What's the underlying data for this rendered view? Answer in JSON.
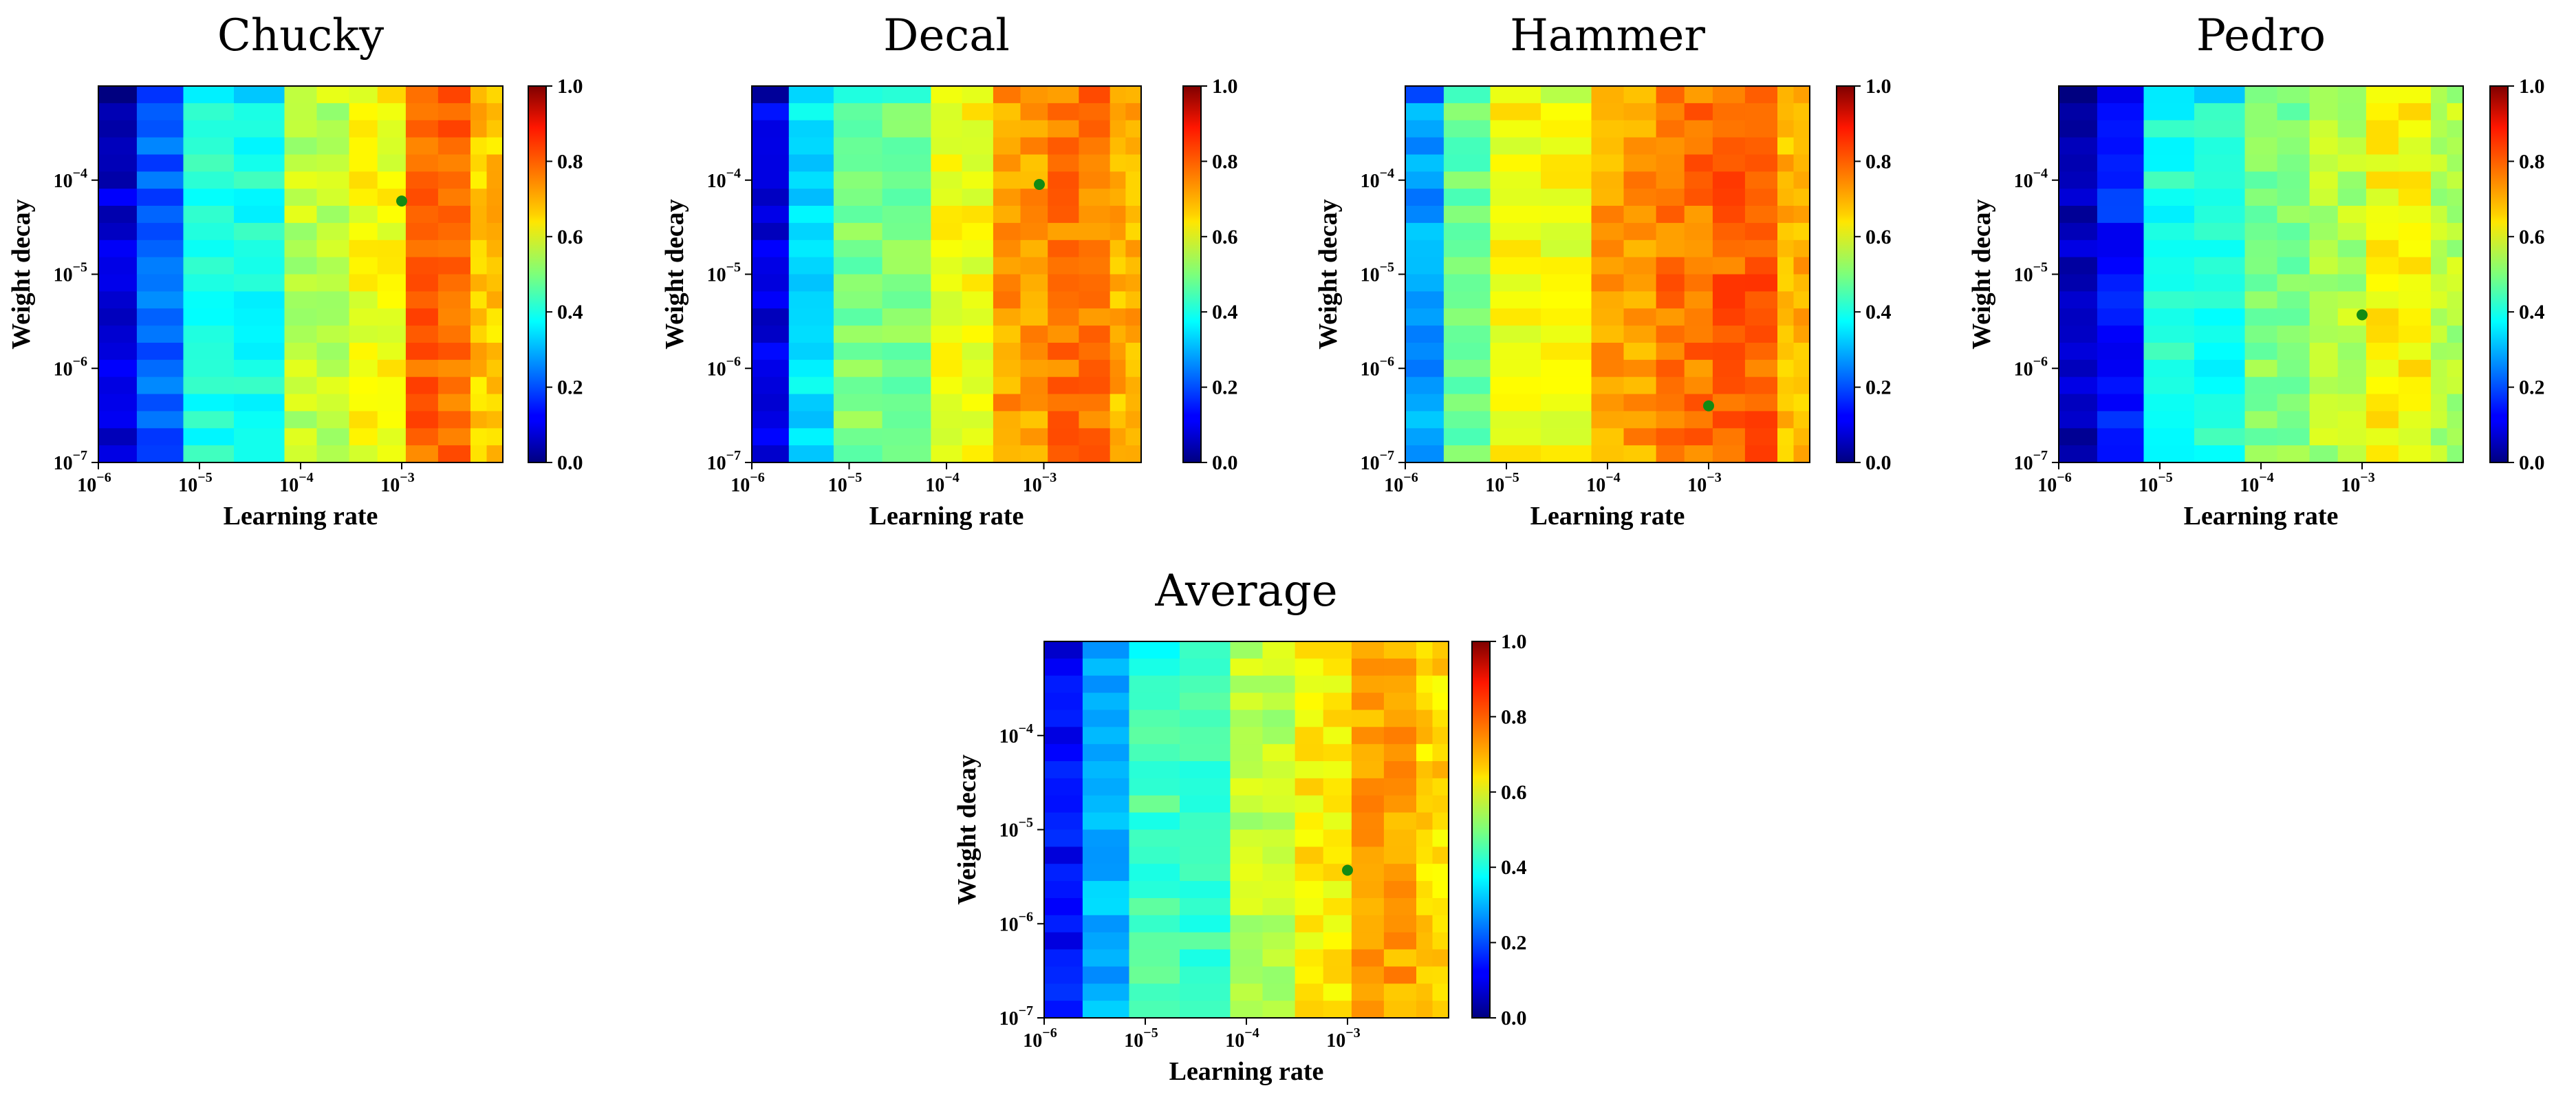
{
  "chart_data": [
    {
      "type": "heatmap",
      "title": "Chucky",
      "xlabel": "Learning rate",
      "ylabel": "Weight decay",
      "xscale": "log",
      "yscale": "log",
      "xlim": [
        1e-06,
        0.01
      ],
      "ylim": [
        1e-07,
        0.001
      ],
      "xticklabels": [
        {
          "base": "10",
          "exp": "−6"
        },
        {
          "base": "10",
          "exp": "−5"
        },
        {
          "base": "10",
          "exp": "−4"
        },
        {
          "base": "10",
          "exp": "−3"
        }
      ],
      "yticklabels": [
        {
          "base": "10",
          "exp": "−7"
        },
        {
          "base": "10",
          "exp": "−6"
        },
        {
          "base": "10",
          "exp": "−5"
        },
        {
          "base": "10",
          "exp": "−4"
        }
      ],
      "colorbar": {
        "range": [
          0,
          1
        ],
        "ticks": [
          "0.0",
          "0.2",
          "0.4",
          "0.6",
          "0.8",
          "1.0"
        ],
        "colormap": "jet"
      },
      "column_values": [
        0.08,
        0.22,
        0.4,
        0.56,
        0.62,
        0.77,
        0.68
      ],
      "best_point": {
        "learning_rate": 0.001,
        "weight_decay": 6e-05
      }
    },
    {
      "type": "heatmap",
      "title": "Decal",
      "xlabel": "Learning rate",
      "ylabel": "Weight decay",
      "xscale": "log",
      "yscale": "log",
      "xlim": [
        1e-06,
        0.01
      ],
      "ylim": [
        1e-07,
        0.001
      ],
      "xticklabels": [
        {
          "base": "10",
          "exp": "−6"
        },
        {
          "base": "10",
          "exp": "−5"
        },
        {
          "base": "10",
          "exp": "−4"
        },
        {
          "base": "10",
          "exp": "−3"
        }
      ],
      "yticklabels": [
        {
          "base": "10",
          "exp": "−7"
        },
        {
          "base": "10",
          "exp": "−6"
        },
        {
          "base": "10",
          "exp": "−5"
        },
        {
          "base": "10",
          "exp": "−4"
        }
      ],
      "colorbar": {
        "range": [
          0,
          1
        ],
        "ticks": [
          "0.0",
          "0.2",
          "0.4",
          "0.6",
          "0.8",
          "1.0"
        ],
        "colormap": "jet"
      },
      "column_values": [
        0.1,
        0.35,
        0.5,
        0.62,
        0.72,
        0.76,
        0.7
      ],
      "best_point": {
        "learning_rate": 0.0009,
        "weight_decay": 9e-05
      }
    },
    {
      "type": "heatmap",
      "title": "Hammer",
      "xlabel": "Learning rate",
      "ylabel": "Weight decay",
      "xscale": "log",
      "yscale": "log",
      "xlim": [
        1e-06,
        0.01
      ],
      "ylim": [
        1e-07,
        0.001
      ],
      "xticklabels": [
        {
          "base": "10",
          "exp": "−6"
        },
        {
          "base": "10",
          "exp": "−5"
        },
        {
          "base": "10",
          "exp": "−4"
        },
        {
          "base": "10",
          "exp": "−3"
        }
      ],
      "yticklabels": [
        {
          "base": "10",
          "exp": "−7"
        },
        {
          "base": "10",
          "exp": "−6"
        },
        {
          "base": "10",
          "exp": "−5"
        },
        {
          "base": "10",
          "exp": "−4"
        }
      ],
      "colorbar": {
        "range": [
          0,
          1
        ],
        "ticks": [
          "0.0",
          "0.2",
          "0.4",
          "0.6",
          "0.8",
          "1.0"
        ],
        "colormap": "jet"
      },
      "column_values": [
        0.28,
        0.48,
        0.62,
        0.72,
        0.76,
        0.78,
        0.7
      ],
      "best_point": {
        "learning_rate": 0.001,
        "weight_decay": 4e-07
      }
    },
    {
      "type": "heatmap",
      "title": "Pedro",
      "xlabel": "Learning rate",
      "ylabel": "Weight decay",
      "xscale": "log",
      "yscale": "log",
      "xlim": [
        1e-06,
        0.01
      ],
      "ylim": [
        1e-07,
        0.001
      ],
      "xticklabels": [
        {
          "base": "10",
          "exp": "−6"
        },
        {
          "base": "10",
          "exp": "−5"
        },
        {
          "base": "10",
          "exp": "−4"
        },
        {
          "base": "10",
          "exp": "−3"
        }
      ],
      "yticklabels": [
        {
          "base": "10",
          "exp": "−7"
        },
        {
          "base": "10",
          "exp": "−6"
        },
        {
          "base": "10",
          "exp": "−5"
        },
        {
          "base": "10",
          "exp": "−4"
        }
      ],
      "colorbar": {
        "range": [
          0,
          1
        ],
        "ticks": [
          "0.0",
          "0.2",
          "0.4",
          "0.6",
          "0.8",
          "1.0"
        ],
        "colormap": "jet"
      },
      "column_values": [
        0.06,
        0.15,
        0.4,
        0.5,
        0.55,
        0.63,
        0.55
      ],
      "best_point": {
        "learning_rate": 0.001,
        "weight_decay": 3.7e-06
      }
    },
    {
      "type": "heatmap",
      "title": "Average",
      "xlabel": "Learning rate",
      "ylabel": "Weight decay",
      "xscale": "log",
      "yscale": "log",
      "xlim": [
        1e-06,
        0.01
      ],
      "ylim": [
        1e-07,
        0.001
      ],
      "xticklabels": [
        {
          "base": "10",
          "exp": "−6"
        },
        {
          "base": "10",
          "exp": "−5"
        },
        {
          "base": "10",
          "exp": "−4"
        },
        {
          "base": "10",
          "exp": "−3"
        }
      ],
      "yticklabels": [
        {
          "base": "10",
          "exp": "−7"
        },
        {
          "base": "10",
          "exp": "−6"
        },
        {
          "base": "10",
          "exp": "−5"
        },
        {
          "base": "10",
          "exp": "−4"
        }
      ],
      "colorbar": {
        "range": [
          0,
          1
        ],
        "ticks": [
          "0.0",
          "0.2",
          "0.4",
          "0.6",
          "0.8",
          "1.0"
        ],
        "colormap": "jet"
      },
      "column_values": [
        0.13,
        0.3,
        0.44,
        0.56,
        0.64,
        0.72,
        0.66
      ],
      "best_point": {
        "learning_rate": 0.001,
        "weight_decay": 3.7e-06
      }
    }
  ],
  "colors": {
    "best_marker": "#138a13",
    "axis": "#000000"
  }
}
